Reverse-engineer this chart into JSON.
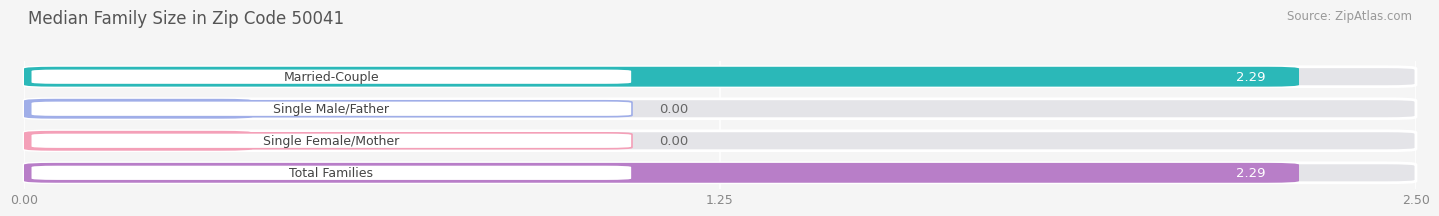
{
  "title": "Median Family Size in Zip Code 50041",
  "source": "Source: ZipAtlas.com",
  "categories": [
    "Married-Couple",
    "Single Male/Father",
    "Single Female/Mother",
    "Total Families"
  ],
  "values": [
    2.29,
    0.0,
    0.0,
    2.29
  ],
  "bar_colors": [
    "#2bb8b8",
    "#a0aee8",
    "#f4a0b8",
    "#b87ec8"
  ],
  "xlim": [
    0,
    2.5
  ],
  "xticks": [
    0.0,
    1.25,
    2.5
  ],
  "xtick_labels": [
    "0.00",
    "1.25",
    "2.50"
  ],
  "bar_height": 0.62,
  "bg_color": "#f5f5f5",
  "bar_bg_color": "#e4e4e8",
  "value_label_color": "#ffffff",
  "value_label_color_outside": "#666666",
  "title_fontsize": 12,
  "source_fontsize": 8.5,
  "label_fontsize": 9,
  "tick_fontsize": 9
}
